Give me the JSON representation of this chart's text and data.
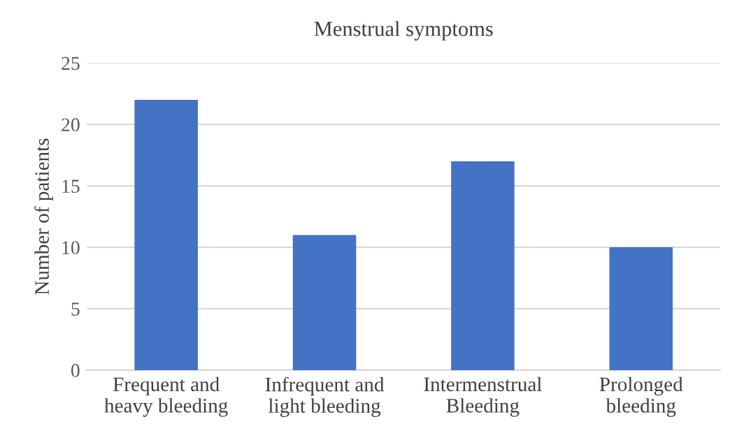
{
  "chart_data": {
    "type": "bar",
    "title": "Menstrual symptoms",
    "ylabel": "Number of patients",
    "categories": [
      "Frequent and\nheavy bleeding",
      "Infrequent and\nlight bleeding",
      "Intermenstrual\nBleeding",
      "Prolonged\nbleeding"
    ],
    "values": [
      22,
      11,
      17,
      10
    ],
    "color": "#4472c4",
    "ylim": [
      0,
      25
    ],
    "yticks": [
      0,
      5,
      10,
      15,
      20,
      25
    ],
    "grid": "y",
    "legend": false
  }
}
